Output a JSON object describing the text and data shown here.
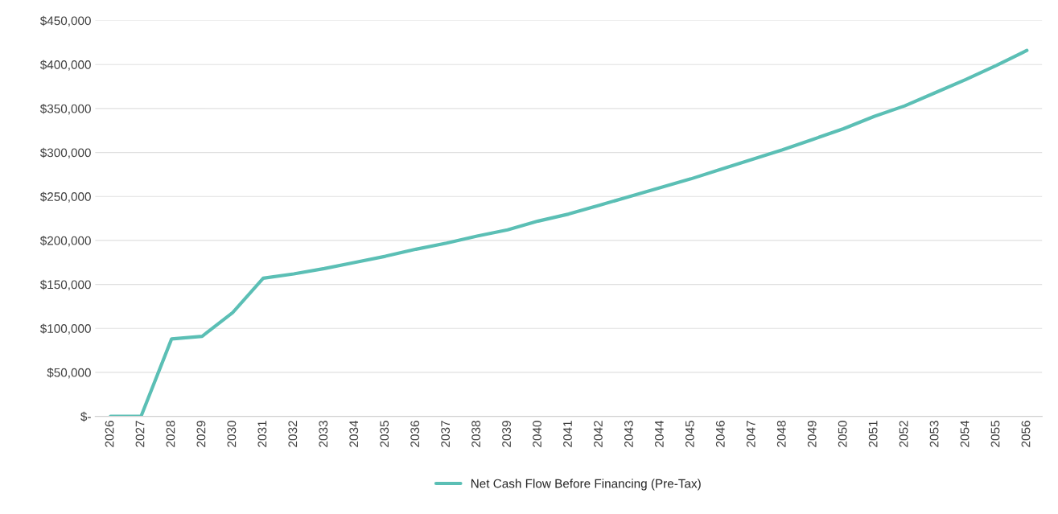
{
  "chart_data": {
    "type": "line",
    "categories": [
      "2026",
      "2027",
      "2028",
      "2029",
      "2030",
      "2031",
      "2032",
      "2033",
      "2034",
      "2035",
      "2036",
      "2037",
      "2038",
      "2039",
      "2040",
      "2041",
      "2042",
      "2043",
      "2044",
      "2045",
      "2046",
      "2047",
      "2048",
      "2049",
      "2050",
      "2051",
      "2052",
      "2053",
      "2054",
      "2055",
      "2056"
    ],
    "series": [
      {
        "name": "Net Cash Flow Before Financing (Pre-Tax)",
        "color": "#5bbfb5",
        "values": [
          0,
          0,
          88000,
          91000,
          118000,
          157000,
          162000,
          168000,
          175000,
          182000,
          190000,
          197000,
          205000,
          212000,
          222000,
          230000,
          240000,
          250000,
          260000,
          270000,
          281000,
          292000,
          303000,
          315000,
          327000,
          341000,
          353000,
          368000,
          383000,
          399000,
          416000
        ]
      }
    ],
    "ylim": [
      0,
      450000
    ],
    "yticks": [
      {
        "value": 0,
        "label": "$-"
      },
      {
        "value": 50000,
        "label": "$50,000"
      },
      {
        "value": 100000,
        "label": "$100,000"
      },
      {
        "value": 150000,
        "label": "$150,000"
      },
      {
        "value": 200000,
        "label": "$200,000"
      },
      {
        "value": 250000,
        "label": "$250,000"
      },
      {
        "value": 300000,
        "label": "$300,000"
      },
      {
        "value": 350000,
        "label": "$350,000"
      },
      {
        "value": 400000,
        "label": "$400,000"
      },
      {
        "value": 450000,
        "label": "$450,000"
      }
    ],
    "grid": "y",
    "legend": "bottom",
    "marker": "none",
    "line_style": "solid"
  }
}
